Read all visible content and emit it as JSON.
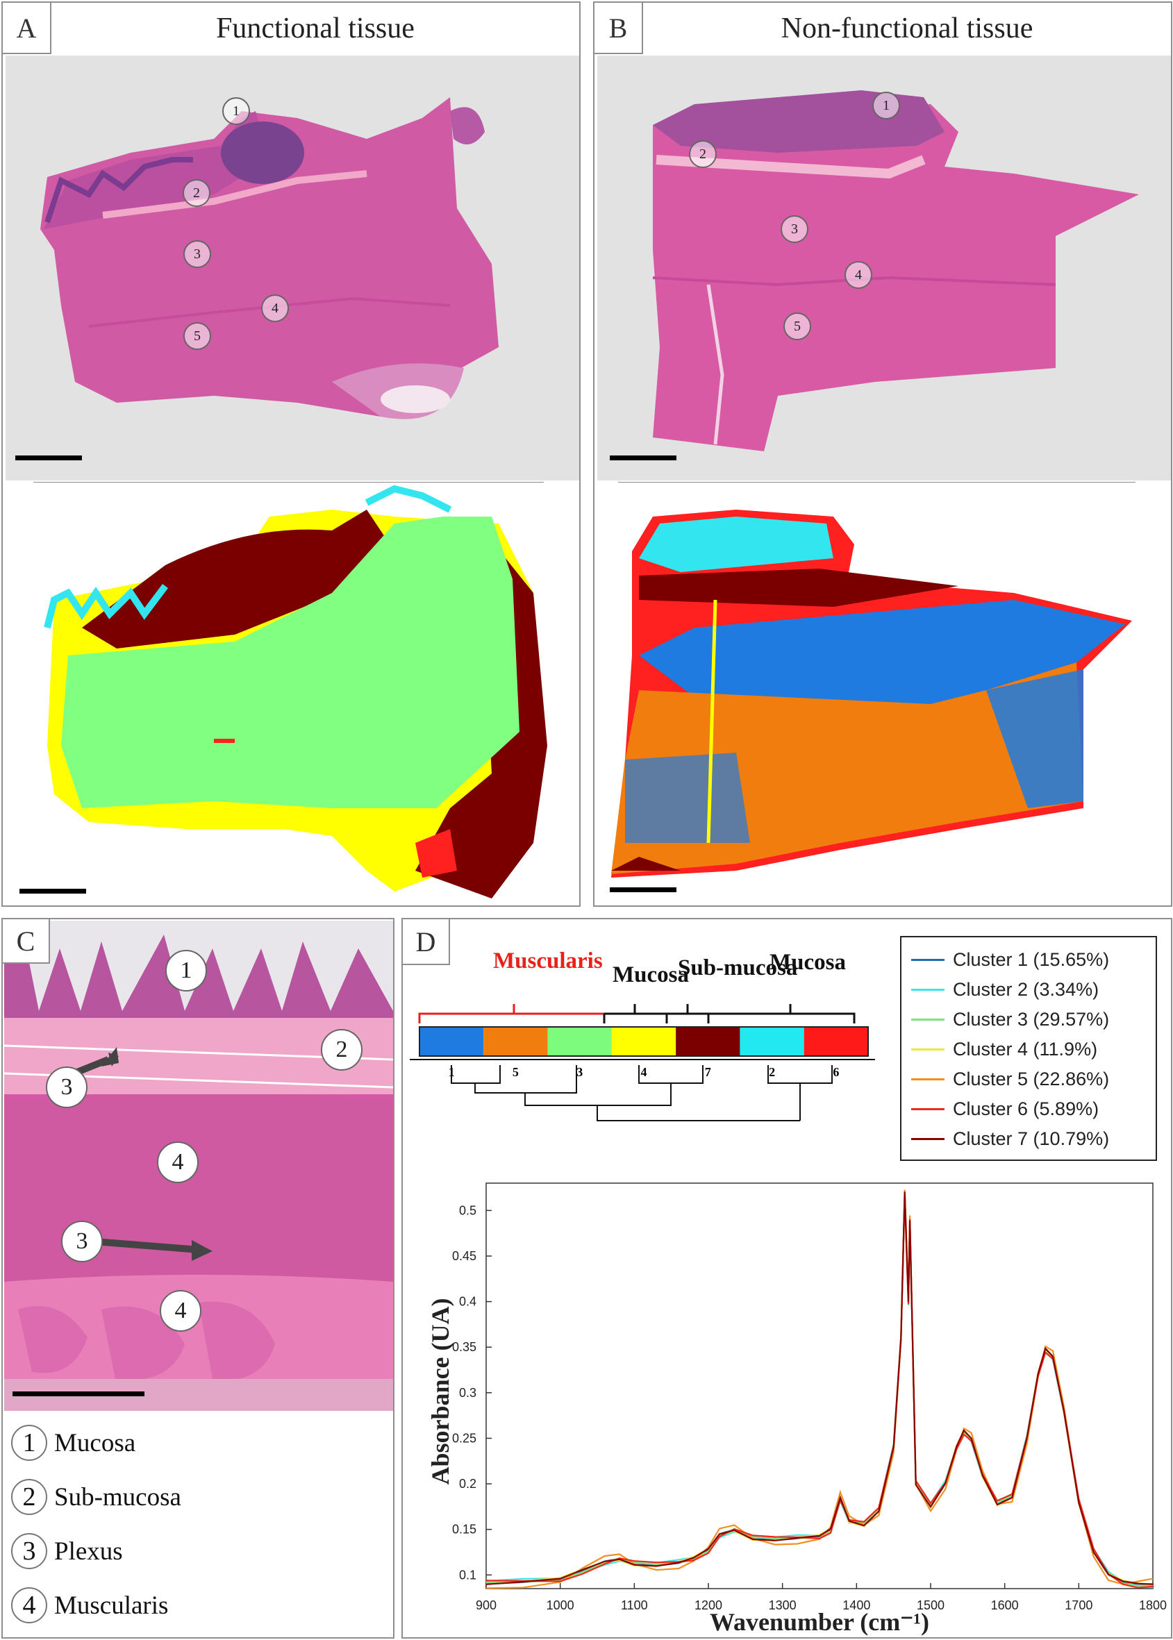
{
  "panelA": {
    "label": "A",
    "title": "Functional tissue",
    "markers": [
      "1",
      "2",
      "3",
      "4",
      "5"
    ]
  },
  "panelB": {
    "label": "B",
    "title": "Non-functional tissue",
    "markers": [
      "1",
      "2",
      "3",
      "4",
      "5"
    ]
  },
  "panelC": {
    "label": "C",
    "markers": [
      "1",
      "2",
      "3",
      "4",
      "3",
      "4"
    ],
    "legend": [
      {
        "num": "1",
        "text": "Mucosa"
      },
      {
        "num": "2",
        "text": "Sub-mucosa"
      },
      {
        "num": "3",
        "text": "Plexus"
      },
      {
        "num": "4",
        "text": "Muscularis"
      }
    ]
  },
  "panelD": {
    "label": "D",
    "dendrogram": {
      "groups": [
        "Muscularis",
        "Mucosa",
        "Sub-mucosa",
        "Mucosa"
      ],
      "muscularis_color": "#e8221b",
      "leaves": [
        "1",
        "5",
        "3",
        "4",
        "7",
        "2",
        "6"
      ],
      "bar_colors": [
        "#1f7be0",
        "#f07d0e",
        "#7dfb7d",
        "#ffff00",
        "#7a0000",
        "#22e8f0",
        "#ff1a1a"
      ]
    }
  },
  "chart_data": {
    "type": "line",
    "xlabel": "Wavenumber (cm⁻¹)",
    "ylabel": "Absorbance (UA)",
    "xlim": [
      900,
      1800
    ],
    "ylim": [
      0.085,
      0.53
    ],
    "xticks": [
      "900",
      "1000",
      "1100",
      "1200",
      "1300",
      "1400",
      "1500",
      "1600",
      "1700",
      "1800"
    ],
    "yticks": [
      "0.1",
      "0.15",
      "0.2",
      "0.25",
      "0.3",
      "0.35",
      "0.4",
      "0.45",
      "0.5"
    ],
    "legend_position": "top-right",
    "series": [
      {
        "name": "Cluster 1 (15.65%)",
        "color": "#1f6fa8",
        "delta": 0
      },
      {
        "name": "Cluster 2 (3.34%)",
        "color": "#3fe6e6",
        "delta": 0.004
      },
      {
        "name": "Cluster 3 (29.57%)",
        "color": "#7fe07f",
        "delta": 0.002
      },
      {
        "name": "Cluster 4 (11.9%)",
        "color": "#f2e63c",
        "delta": -0.002
      },
      {
        "name": "Cluster 5 (22.86%)",
        "color": "#f09020",
        "delta": 0.006
      },
      {
        "name": "Cluster 6 (5.89%)",
        "color": "#ee2a1a",
        "delta": -0.004
      },
      {
        "name": "Cluster 7 (10.79%)",
        "color": "#8b0000",
        "delta": 0.001
      }
    ],
    "x": [
      900,
      950,
      1000,
      1030,
      1060,
      1080,
      1100,
      1130,
      1160,
      1180,
      1200,
      1215,
      1235,
      1260,
      1290,
      1320,
      1350,
      1365,
      1378,
      1390,
      1410,
      1430,
      1450,
      1460,
      1465,
      1470,
      1472,
      1480,
      1500,
      1520,
      1535,
      1545,
      1555,
      1570,
      1590,
      1610,
      1630,
      1645,
      1655,
      1665,
      1680,
      1700,
      1720,
      1740,
      1760,
      1780,
      1800
    ],
    "y": [
      0.09,
      0.092,
      0.095,
      0.105,
      0.115,
      0.118,
      0.112,
      0.11,
      0.113,
      0.118,
      0.128,
      0.145,
      0.15,
      0.14,
      0.138,
      0.14,
      0.142,
      0.15,
      0.185,
      0.16,
      0.155,
      0.17,
      0.24,
      0.36,
      0.52,
      0.4,
      0.49,
      0.2,
      0.175,
      0.2,
      0.24,
      0.258,
      0.25,
      0.21,
      0.178,
      0.185,
      0.25,
      0.32,
      0.348,
      0.34,
      0.28,
      0.18,
      0.125,
      0.1,
      0.092,
      0.09,
      0.09
    ]
  }
}
